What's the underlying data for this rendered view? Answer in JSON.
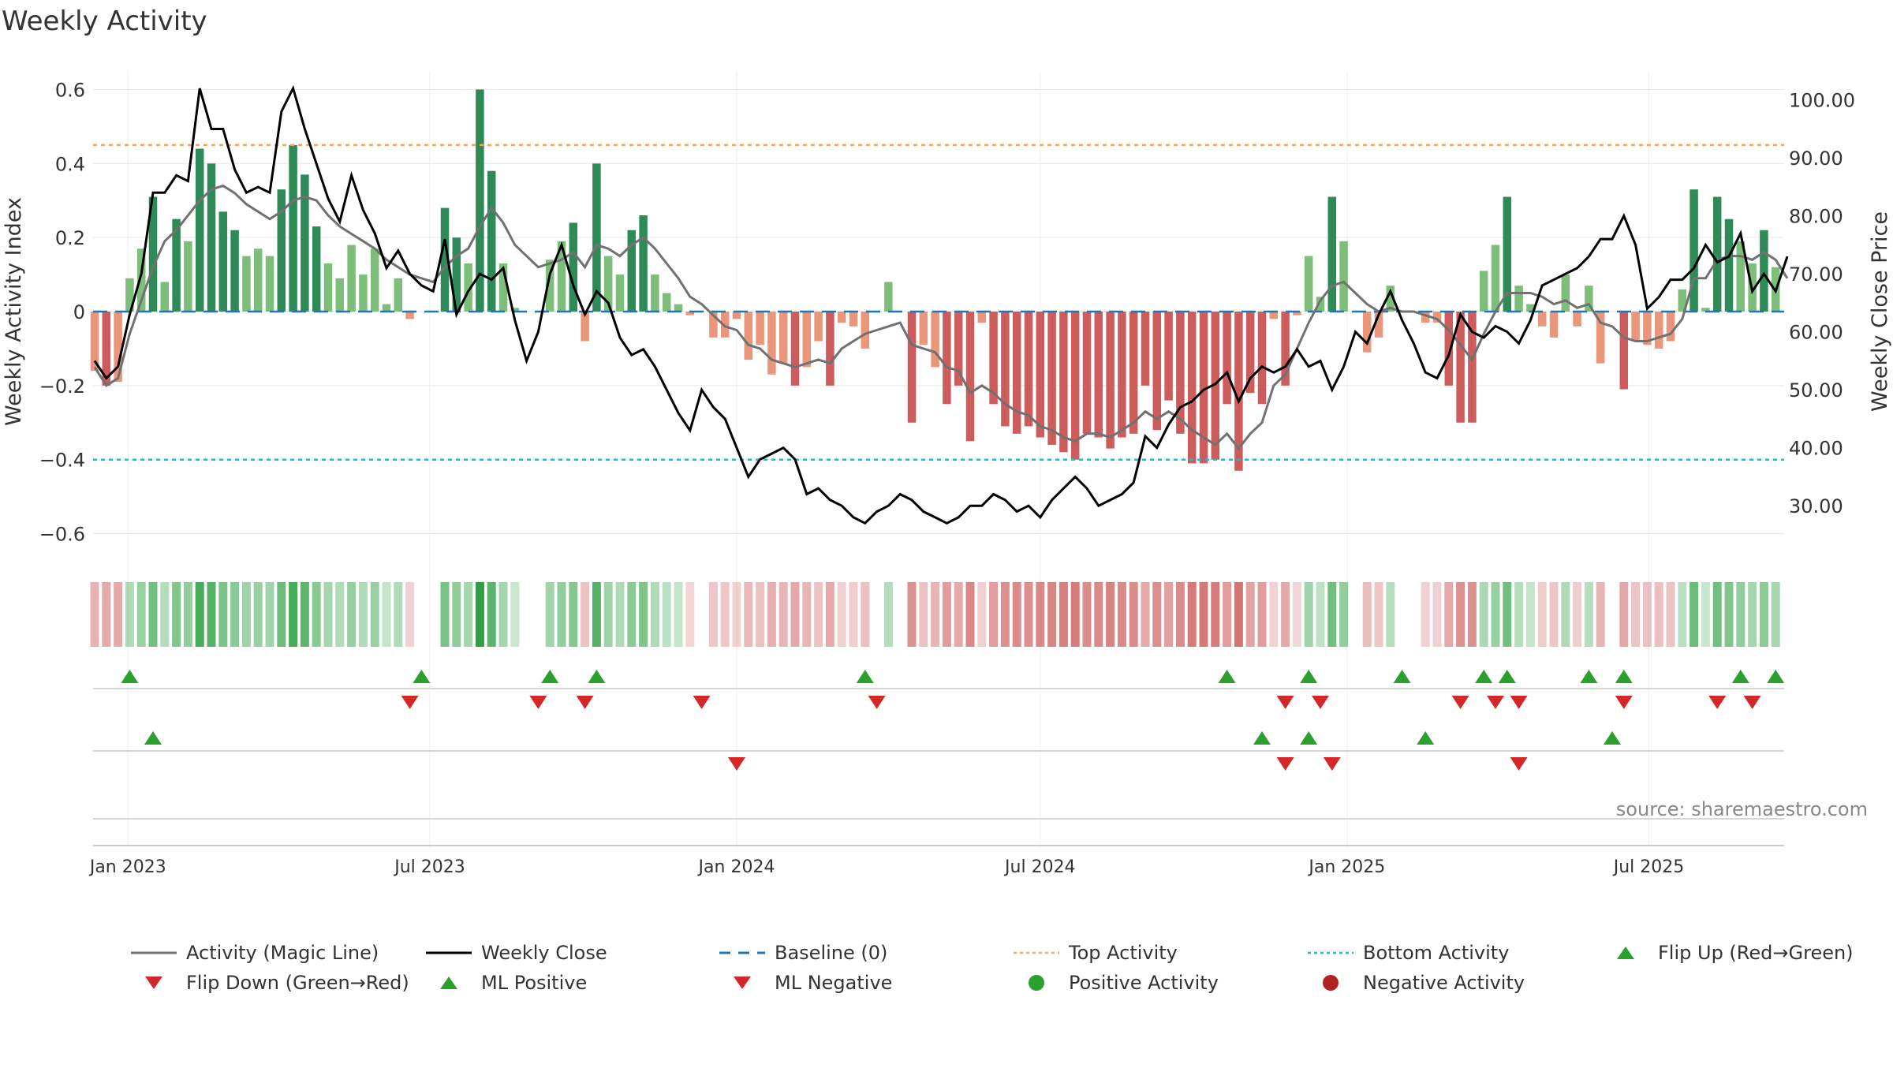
{
  "chart_data": {
    "type": "bar",
    "title": "Weekly Activity",
    "ylabel_left": "Weekly Activity Index",
    "ylabel_right": "Weekly Close Price",
    "source": "source: sharemaestro.com",
    "ylim_left": [
      -0.65,
      0.65
    ],
    "yticks_left": [
      0.6,
      0.4,
      0.2,
      0,
      -0.2,
      -0.4,
      -0.6
    ],
    "ytick_labels_left": [
      "0.6",
      "0.4",
      "0.2",
      "0",
      "−0.2",
      "−0.4",
      "−0.6"
    ],
    "ylim_right": [
      22,
      105
    ],
    "yticks_right": [
      100,
      90,
      80,
      70,
      60,
      50,
      40,
      30
    ],
    "ytick_labels_right": [
      "100.00",
      "90.00",
      "80.00",
      "70.00",
      "60.00",
      "50.00",
      "40.00",
      "30.00"
    ],
    "x_start": "2022-12-12",
    "week_count": 146,
    "x_ticks": [
      {
        "label": "Jan 2023",
        "date": "2023-01-01"
      },
      {
        "label": "Jul 2023",
        "date": "2023-07-01"
      },
      {
        "label": "Jan 2024",
        "date": "2024-01-01"
      },
      {
        "label": "Jul 2024",
        "date": "2024-07-01"
      },
      {
        "label": "Jan 2025",
        "date": "2025-01-01"
      },
      {
        "label": "Jul 2025",
        "date": "2025-07-01"
      }
    ],
    "reference_lines": {
      "baseline": 0,
      "top_activity": 0.45,
      "bottom_activity": -0.4
    },
    "activity": [
      -0.16,
      -0.2,
      -0.19,
      0.09,
      0.17,
      0.31,
      0.08,
      0.25,
      0.19,
      0.44,
      0.4,
      0.27,
      0.22,
      0.15,
      0.17,
      0.15,
      0.33,
      0.45,
      0.37,
      0.23,
      0.13,
      0.09,
      0.18,
      0.1,
      0.17,
      0.02,
      0.09,
      -0.02,
      0.0,
      0.0,
      0.28,
      0.2,
      0.13,
      0.6,
      0.38,
      0.13,
      0.01,
      0.0,
      0.0,
      0.14,
      0.19,
      0.24,
      -0.08,
      0.4,
      0.15,
      0.1,
      0.22,
      0.26,
      0.1,
      0.05,
      0.02,
      -0.01,
      0.0,
      -0.07,
      -0.07,
      -0.02,
      -0.13,
      -0.09,
      -0.17,
      -0.14,
      -0.2,
      -0.15,
      -0.08,
      -0.2,
      -0.03,
      -0.04,
      -0.1,
      0.0,
      0.08,
      0.0,
      -0.3,
      -0.09,
      -0.15,
      -0.25,
      -0.2,
      -0.35,
      -0.03,
      -0.25,
      -0.31,
      -0.33,
      -0.31,
      -0.34,
      -0.36,
      -0.38,
      -0.4,
      -0.33,
      -0.34,
      -0.37,
      -0.34,
      -0.33,
      -0.2,
      -0.32,
      -0.24,
      -0.33,
      -0.41,
      -0.41,
      -0.4,
      -0.25,
      -0.43,
      -0.22,
      -0.25,
      -0.02,
      -0.2,
      -0.01,
      0.15,
      0.04,
      0.31,
      0.19,
      0.0,
      -0.11,
      -0.07,
      0.07,
      0.0,
      0.0,
      -0.03,
      -0.03,
      -0.2,
      -0.3,
      -0.3,
      0.11,
      0.18,
      0.31,
      0.07,
      0.02,
      -0.04,
      -0.07,
      0.1,
      -0.04,
      0.07,
      -0.14,
      0.0,
      -0.21,
      -0.08,
      -0.09,
      -0.1,
      -0.08,
      0.06,
      0.33,
      0.01,
      0.31,
      0.25,
      0.19,
      0.13,
      0.22,
      0.12,
      0.0
    ],
    "weekly_close": [
      55,
      52,
      54,
      63,
      70,
      84,
      84,
      87,
      86,
      102,
      95,
      95,
      88,
      84,
      85,
      84,
      98,
      102,
      95,
      89,
      83,
      79,
      87,
      81,
      77,
      71,
      74,
      70,
      68,
      67,
      76,
      63,
      67,
      70,
      69,
      71,
      62,
      55,
      60,
      70,
      75,
      68,
      63,
      67,
      65,
      59,
      56,
      57,
      54,
      50,
      46,
      43,
      50,
      47,
      45,
      40,
      35,
      38,
      39,
      40,
      38,
      32,
      33,
      31,
      30,
      28,
      27,
      29,
      30,
      32,
      31,
      29,
      28,
      27,
      28,
      30,
      30,
      32,
      31,
      29,
      30,
      28,
      31,
      33,
      35,
      33,
      30,
      31,
      32,
      34,
      42,
      40,
      44,
      47,
      48,
      50,
      51,
      53,
      48,
      52,
      54,
      53,
      54,
      57,
      54,
      55,
      50,
      54,
      60,
      58,
      63,
      67,
      62,
      58,
      53,
      52,
      56,
      63,
      60,
      59,
      61,
      60,
      58,
      62,
      68,
      69,
      70,
      71,
      73,
      76,
      76,
      80,
      75,
      64,
      66,
      69,
      69,
      71,
      75,
      72,
      73,
      77,
      67,
      70,
      67,
      73
    ],
    "magic_line": [
      -0.15,
      -0.2,
      -0.18,
      -0.06,
      0.03,
      0.12,
      0.19,
      0.22,
      0.26,
      0.3,
      0.33,
      0.34,
      0.32,
      0.29,
      0.27,
      0.25,
      0.27,
      0.3,
      0.31,
      0.3,
      0.26,
      0.23,
      0.21,
      0.19,
      0.17,
      0.14,
      0.12,
      0.1,
      0.09,
      0.08,
      0.12,
      0.15,
      0.17,
      0.23,
      0.28,
      0.24,
      0.18,
      0.15,
      0.12,
      0.13,
      0.14,
      0.16,
      0.12,
      0.18,
      0.17,
      0.15,
      0.18,
      0.2,
      0.17,
      0.13,
      0.09,
      0.04,
      0.02,
      -0.01,
      -0.04,
      -0.05,
      -0.09,
      -0.1,
      -0.13,
      -0.14,
      -0.15,
      -0.14,
      -0.13,
      -0.14,
      -0.1,
      -0.08,
      -0.06,
      -0.05,
      -0.04,
      -0.03,
      -0.09,
      -0.1,
      -0.11,
      -0.15,
      -0.16,
      -0.22,
      -0.2,
      -0.22,
      -0.25,
      -0.27,
      -0.28,
      -0.31,
      -0.32,
      -0.34,
      -0.35,
      -0.33,
      -0.33,
      -0.34,
      -0.32,
      -0.3,
      -0.27,
      -0.29,
      -0.27,
      -0.29,
      -0.32,
      -0.34,
      -0.36,
      -0.33,
      -0.37,
      -0.33,
      -0.3,
      -0.2,
      -0.17,
      -0.1,
      -0.03,
      0.03,
      0.07,
      0.08,
      0.05,
      0.02,
      0.0,
      0.01,
      0.0,
      0.0,
      -0.01,
      -0.02,
      -0.05,
      -0.09,
      -0.13,
      -0.06,
      0.0,
      0.05,
      0.05,
      0.05,
      0.04,
      0.02,
      0.03,
      0.01,
      0.02,
      -0.03,
      -0.04,
      -0.07,
      -0.08,
      -0.08,
      -0.07,
      -0.06,
      -0.02,
      0.09,
      0.09,
      0.14,
      0.15,
      0.15,
      0.14,
      0.16,
      0.14,
      0.09
    ],
    "flip_up_weeks": [
      3,
      28,
      39,
      43,
      66,
      97,
      104,
      112,
      119,
      121,
      128,
      131,
      141,
      144
    ],
    "flip_down_weeks": [
      27,
      38,
      42,
      52,
      67,
      102,
      105,
      117,
      120,
      122,
      131,
      139,
      142
    ],
    "ml_positive_weeks": [
      5,
      100,
      104,
      114,
      130
    ],
    "ml_negative_weeks": [
      55,
      102,
      106,
      122
    ]
  },
  "legend": [
    {
      "label": "Activity (Magic Line)",
      "icon": "gray-line",
      "color": "#717171"
    },
    {
      "label": "Weekly Close",
      "icon": "black-line",
      "color": "#000000"
    },
    {
      "label": "Baseline (0)",
      "icon": "blue-dashed-line",
      "color": "#1f77b4"
    },
    {
      "label": "Top Activity",
      "icon": "orange-dotted-line",
      "color": "#f4a460"
    },
    {
      "label": "Bottom Activity",
      "icon": "cyan-dotted-line",
      "color": "#17becf"
    },
    {
      "label": "Flip Up (Red→Green)",
      "icon": "green-triangle-up",
      "color": "#2ca02c"
    },
    {
      "label": "Flip Down (Green→Red)",
      "icon": "red-triangle-down",
      "color": "#d62728"
    },
    {
      "label": "ML Positive",
      "icon": "green-triangle-up",
      "color": "#2ca02c"
    },
    {
      "label": "ML Negative",
      "icon": "red-triangle-down",
      "color": "#d62728"
    },
    {
      "label": "Positive Activity",
      "icon": "green-dot",
      "color": "#2ca02c"
    },
    {
      "label": "Negative Activity",
      "icon": "red-dot",
      "color": "#b22222"
    }
  ],
  "colors": {
    "strong_green": "#2e8b57",
    "light_green": "#7dbf7a",
    "strong_red": "#cd5c5c",
    "light_red": "#e9967a",
    "grid": "#e6e6e6"
  }
}
